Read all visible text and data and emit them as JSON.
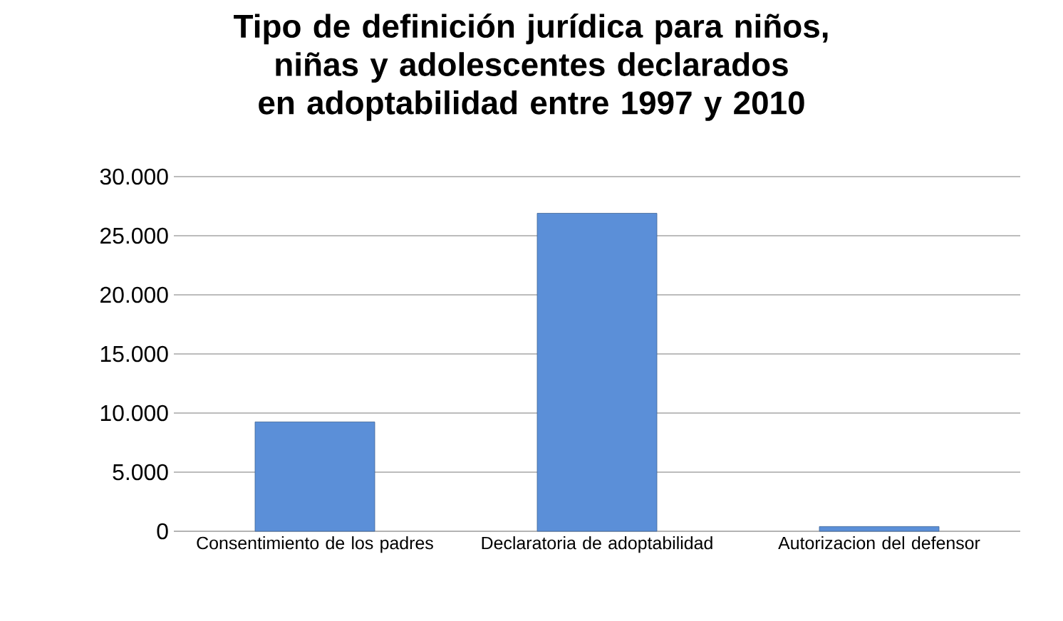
{
  "chart_data": {
    "type": "bar",
    "title": "Tipo de definición jurídica para niños, niñas y adolescentes declarados en adoptabilidad entre 1997 y 2010",
    "categories": [
      "Consentimiento de los padres",
      "Declaratoria de adoptabilidad",
      "Autorizacion del defensor"
    ],
    "values": [
      9250,
      26900,
      400
    ],
    "color": "#5b8fd8",
    "ylim": [
      0,
      30000
    ],
    "yticks": [
      {
        "value": 0,
        "label": "0"
      },
      {
        "value": 5000,
        "label": "5.000"
      },
      {
        "value": 10000,
        "label": "10.000"
      },
      {
        "value": 15000,
        "label": "15.000"
      },
      {
        "value": 20000,
        "label": "20.000"
      },
      {
        "value": 25000,
        "label": "25.000"
      },
      {
        "value": 30000,
        "label": "30.000"
      }
    ],
    "grid": "y"
  }
}
